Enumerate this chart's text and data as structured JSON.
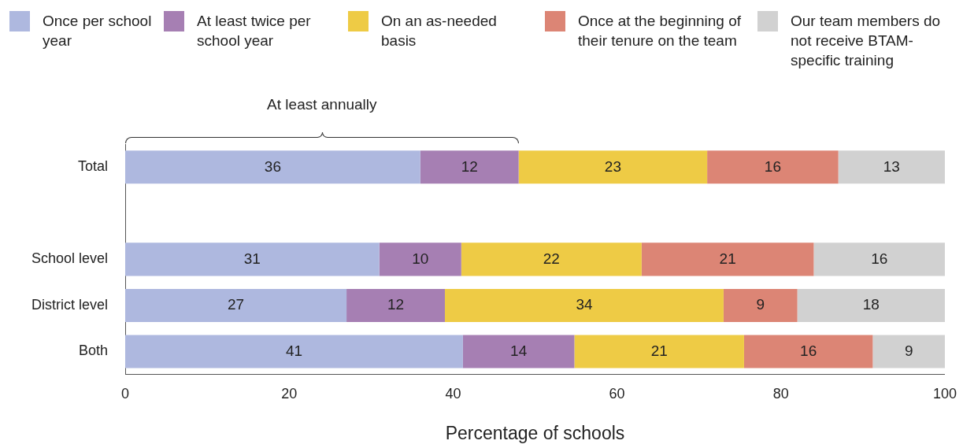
{
  "chart_data": {
    "type": "bar",
    "orientation": "horizontal",
    "stacked": true,
    "categories": [
      "Total",
      null,
      "School level",
      "District level",
      "Both"
    ],
    "series": [
      {
        "name": "Once per school year",
        "color": "#aeb8df",
        "values": [
          36,
          null,
          31,
          27,
          41.2
        ],
        "value_labels": [
          "36",
          null,
          "31",
          "27",
          "41"
        ]
      },
      {
        "name": "At least twice per school year",
        "color": "#a67fb3",
        "values": [
          12,
          null,
          10,
          12,
          13.6
        ],
        "value_labels": [
          "12",
          null,
          "10",
          "12",
          "14"
        ]
      },
      {
        "name": "On an as-needed basis",
        "color": "#eecb45",
        "values": [
          23,
          null,
          22,
          34,
          20.7
        ],
        "value_labels": [
          "23",
          null,
          "22",
          "34",
          "21"
        ]
      },
      {
        "name": "Once at the beginning of their tenure on the team",
        "color": "#dc8575",
        "values": [
          16,
          null,
          21,
          9,
          15.7
        ],
        "value_labels": [
          "16",
          null,
          "21",
          "9",
          "16"
        ]
      },
      {
        "name": "Our team members do not receive BTAM-specific training",
        "color": "#d1d1d1",
        "values": [
          13,
          null,
          16,
          18,
          8.8
        ],
        "value_labels": [
          "13",
          null,
          "16",
          "18",
          "9"
        ]
      }
    ],
    "xlim": [
      0,
      100
    ],
    "xticks": [
      0,
      20,
      40,
      60,
      80,
      100
    ],
    "xlabel": "Percentage of schools",
    "annotations": [
      "At least annually"
    ],
    "grid": false,
    "legend": "top"
  }
}
